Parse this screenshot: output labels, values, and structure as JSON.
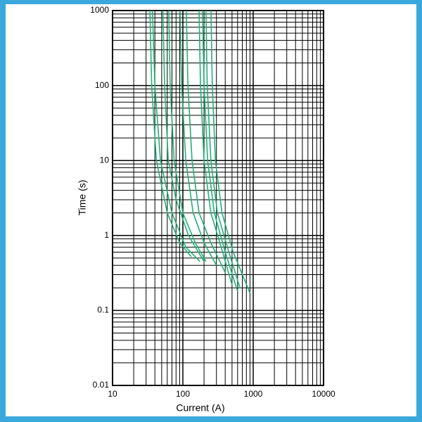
{
  "chart_data": {
    "type": "line",
    "x_label": "Current (A)",
    "y_label": "Time (s)",
    "xscale": "log",
    "yscale": "log",
    "grid": true,
    "minor_grid": true,
    "color": "#22b07a",
    "xlim": [
      10,
      10000
    ],
    "ylim": [
      0.01,
      1000
    ],
    "xticks": [
      10,
      100,
      1000,
      10000
    ],
    "yticks": [
      0.01,
      0.1,
      1,
      10,
      100,
      1000
    ],
    "series": [
      {
        "x": [
          34,
          36,
          42,
          60,
          90,
          132
        ],
        "values": [
          1000,
          100,
          10,
          2,
          0.8,
          0.52
        ]
      },
      {
        "x": [
          37,
          40,
          48,
          70,
          110,
          175
        ],
        "values": [
          1000,
          100,
          10,
          2,
          0.7,
          0.45
        ]
      },
      {
        "x": [
          52,
          55,
          62,
          80,
          120,
          200
        ],
        "values": [
          1000,
          100,
          10,
          3,
          1,
          0.45
        ]
      },
      {
        "x": [
          63,
          66,
          75,
          100,
          150,
          213
        ],
        "values": [
          1000,
          100,
          10,
          2,
          0.8,
          0.45
        ]
      },
      {
        "x": [
          91,
          96,
          110,
          140,
          200,
          300
        ],
        "values": [
          1000,
          100,
          10,
          2,
          0.8,
          0.4
        ]
      },
      {
        "x": [
          112,
          118,
          135,
          170,
          250,
          400
        ],
        "values": [
          1000,
          100,
          10,
          2,
          0.8,
          0.32
        ]
      },
      {
        "x": [
          170,
          178,
          200,
          250,
          350,
          500
        ],
        "values": [
          1000,
          100,
          10,
          2,
          0.7,
          0.22
        ]
      },
      {
        "x": [
          190,
          200,
          225,
          280,
          400,
          600
        ],
        "values": [
          1000,
          100,
          10,
          2,
          0.6,
          0.18
        ]
      },
      {
        "x": [
          213,
          222,
          250,
          310,
          450,
          650
        ],
        "values": [
          1000,
          100,
          10,
          2,
          0.6,
          0.2
        ]
      },
      {
        "x": [
          251,
          262,
          290,
          360,
          520,
          900
        ],
        "values": [
          1000,
          100,
          10,
          2,
          0.6,
          0.17
        ]
      }
    ]
  }
}
